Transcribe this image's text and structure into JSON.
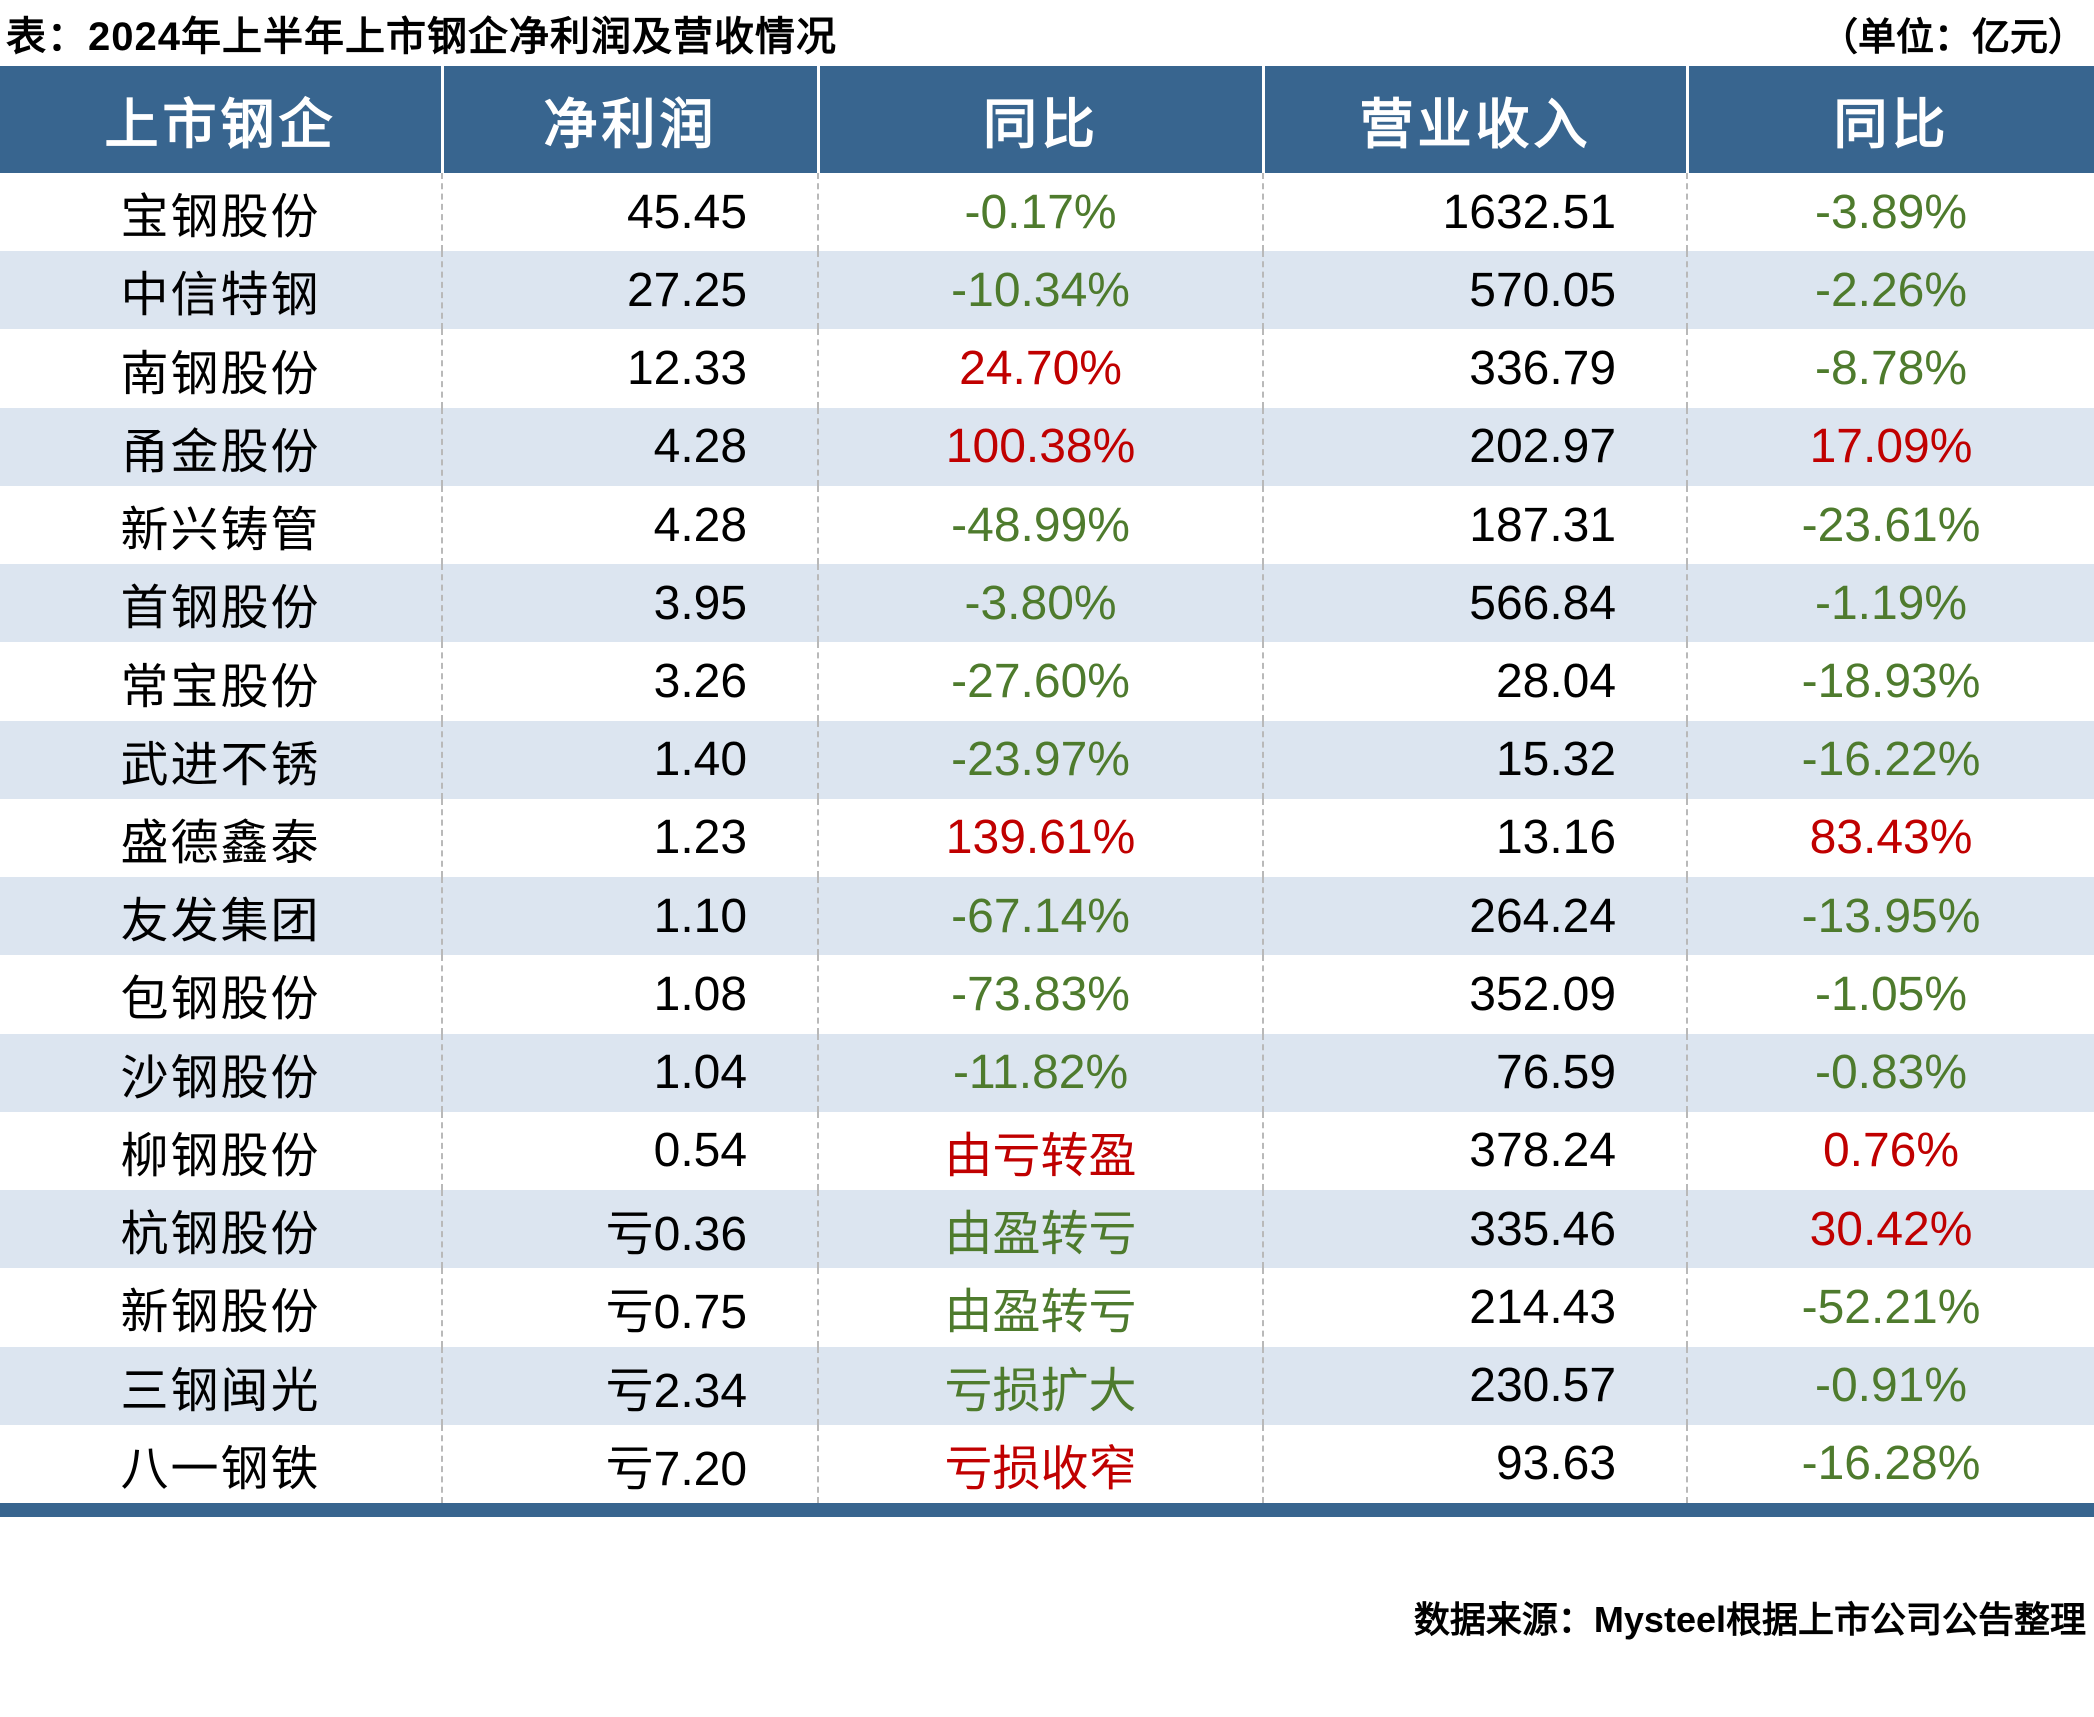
{
  "title": "表：2024年上半年上市钢企净利润及营收情况",
  "unit_note": "（单位：亿元）",
  "footer": {
    "source": "数据来源：Mysteel根据上市公司公告整理"
  },
  "colors": {
    "header_bg": "#38658F",
    "row_alt_bg": "#DCE5F0",
    "up_red": "#C00000",
    "down_green": "#4E7B2D"
  },
  "chart_data": {
    "type": "table",
    "title": "2024年上半年上市钢企净利润及营收情况",
    "unit": "亿元",
    "columns": [
      "上市钢企",
      "净利润",
      "同比",
      "营业收入",
      "同比"
    ],
    "rows": [
      {
        "company": "宝钢股份",
        "net_profit": "45.45",
        "profit_yoy": "-0.17%",
        "profit_yoy_color": "green",
        "revenue": "1632.51",
        "revenue_yoy": "-3.89%",
        "revenue_yoy_color": "green"
      },
      {
        "company": "中信特钢",
        "net_profit": "27.25",
        "profit_yoy": "-10.34%",
        "profit_yoy_color": "green",
        "revenue": "570.05",
        "revenue_yoy": "-2.26%",
        "revenue_yoy_color": "green"
      },
      {
        "company": "南钢股份",
        "net_profit": "12.33",
        "profit_yoy": "24.70%",
        "profit_yoy_color": "red",
        "revenue": "336.79",
        "revenue_yoy": "-8.78%",
        "revenue_yoy_color": "green"
      },
      {
        "company": "甬金股份",
        "net_profit": "4.28",
        "profit_yoy": "100.38%",
        "profit_yoy_color": "red",
        "revenue": "202.97",
        "revenue_yoy": "17.09%",
        "revenue_yoy_color": "red"
      },
      {
        "company": "新兴铸管",
        "net_profit": "4.28",
        "profit_yoy": "-48.99%",
        "profit_yoy_color": "green",
        "revenue": "187.31",
        "revenue_yoy": "-23.61%",
        "revenue_yoy_color": "green"
      },
      {
        "company": "首钢股份",
        "net_profit": "3.95",
        "profit_yoy": "-3.80%",
        "profit_yoy_color": "green",
        "revenue": "566.84",
        "revenue_yoy": "-1.19%",
        "revenue_yoy_color": "green"
      },
      {
        "company": "常宝股份",
        "net_profit": "3.26",
        "profit_yoy": "-27.60%",
        "profit_yoy_color": "green",
        "revenue": "28.04",
        "revenue_yoy": "-18.93%",
        "revenue_yoy_color": "green"
      },
      {
        "company": "武进不锈",
        "net_profit": "1.40",
        "profit_yoy": "-23.97%",
        "profit_yoy_color": "green",
        "revenue": "15.32",
        "revenue_yoy": "-16.22%",
        "revenue_yoy_color": "green"
      },
      {
        "company": "盛德鑫泰",
        "net_profit": "1.23",
        "profit_yoy": "139.61%",
        "profit_yoy_color": "red",
        "revenue": "13.16",
        "revenue_yoy": "83.43%",
        "revenue_yoy_color": "red"
      },
      {
        "company": "友发集团",
        "net_profit": "1.10",
        "profit_yoy": "-67.14%",
        "profit_yoy_color": "green",
        "revenue": "264.24",
        "revenue_yoy": "-13.95%",
        "revenue_yoy_color": "green"
      },
      {
        "company": "包钢股份",
        "net_profit": "1.08",
        "profit_yoy": "-73.83%",
        "profit_yoy_color": "green",
        "revenue": "352.09",
        "revenue_yoy": "-1.05%",
        "revenue_yoy_color": "green"
      },
      {
        "company": "沙钢股份",
        "net_profit": "1.04",
        "profit_yoy": "-11.82%",
        "profit_yoy_color": "green",
        "revenue": "76.59",
        "revenue_yoy": "-0.83%",
        "revenue_yoy_color": "green"
      },
      {
        "company": "柳钢股份",
        "net_profit": "0.54",
        "profit_yoy": "由亏转盈",
        "profit_yoy_color": "red",
        "revenue": "378.24",
        "revenue_yoy": "0.76%",
        "revenue_yoy_color": "red"
      },
      {
        "company": "杭钢股份",
        "net_profit": "亏0.36",
        "profit_yoy": "由盈转亏",
        "profit_yoy_color": "green",
        "revenue": "335.46",
        "revenue_yoy": "30.42%",
        "revenue_yoy_color": "red"
      },
      {
        "company": "新钢股份",
        "net_profit": "亏0.75",
        "profit_yoy": "由盈转亏",
        "profit_yoy_color": "green",
        "revenue": "214.43",
        "revenue_yoy": "-52.21%",
        "revenue_yoy_color": "green"
      },
      {
        "company": "三钢闽光",
        "net_profit": "亏2.34",
        "profit_yoy": "亏损扩大",
        "profit_yoy_color": "green",
        "revenue": "230.57",
        "revenue_yoy": "-0.91%",
        "revenue_yoy_color": "green"
      },
      {
        "company": "八一钢铁",
        "net_profit": "亏7.20",
        "profit_yoy": "亏损收窄",
        "profit_yoy_color": "red",
        "revenue": "93.63",
        "revenue_yoy": "-16.28%",
        "revenue_yoy_color": "green"
      }
    ]
  }
}
